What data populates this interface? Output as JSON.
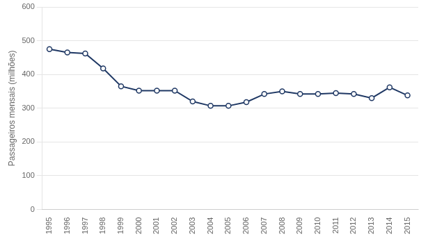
{
  "chart_data": {
    "type": "line",
    "x": [
      1995,
      1996,
      1997,
      1998,
      1999,
      2000,
      2001,
      2002,
      2003,
      2004,
      2005,
      2006,
      2007,
      2008,
      2009,
      2010,
      2011,
      2012,
      2013,
      2014,
      2015
    ],
    "values": [
      475,
      465,
      462,
      418,
      365,
      352,
      352,
      352,
      320,
      307,
      307,
      318,
      342,
      350,
      342,
      342,
      345,
      342,
      330,
      362,
      338
    ],
    "color": "#1F3864",
    "marker": "circle",
    "ylabel": "Passageiros mensais (milhões)",
    "xlim": [
      1994.6,
      2015.6
    ],
    "xticks": [
      1995,
      1996,
      1997,
      1998,
      1999,
      2000,
      2001,
      2002,
      2003,
      2004,
      2005,
      2006,
      2007,
      2008,
      2009,
      2010,
      2011,
      2012,
      2013,
      2014,
      2015
    ],
    "ylim": [
      0,
      600
    ],
    "yticks": [
      0,
      100,
      200,
      300,
      400,
      500,
      600
    ],
    "grid": true
  }
}
